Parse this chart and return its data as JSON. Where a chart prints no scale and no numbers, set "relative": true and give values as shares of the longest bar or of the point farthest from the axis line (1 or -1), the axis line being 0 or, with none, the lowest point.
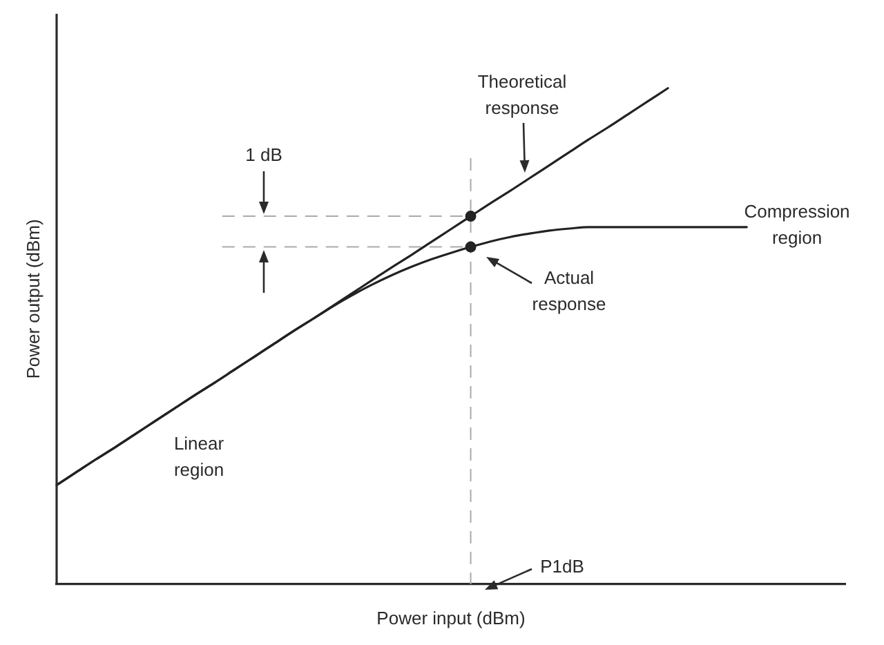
{
  "chart_data": {
    "type": "line",
    "relative": true,
    "xlabel": "Power input (dBm)",
    "ylabel": "Power output (dBm)",
    "categories": [
      null,
      null,
      null,
      null,
      null,
      null,
      null,
      null,
      null,
      null,
      null,
      null,
      null,
      null,
      null,
      null,
      null,
      null,
      null,
      null,
      null,
      null,
      null,
      null,
      null,
      null,
      null,
      null,
      null,
      null,
      null,
      null,
      null,
      null,
      null,
      null,
      null,
      null,
      null,
      null,
      null
    ],
    "series": [
      {
        "type": "line",
        "color": "#222222",
        "marker": "none",
        "values": [
          0.2,
          0.226,
          0.252,
          0.277,
          0.303,
          0.329,
          0.355,
          0.381,
          0.406,
          0.432,
          0.458,
          0.484,
          0.51,
          0.535,
          0.561,
          0.587,
          0.613,
          0.639,
          0.664,
          0.69,
          0.716,
          0.742,
          0.768,
          0.793,
          0.819,
          0.845,
          0.871,
          0.897,
          0.922,
          0.948,
          0.974,
          1.0,
          null,
          null,
          null,
          null,
          null,
          null,
          null,
          null,
          null
        ]
      },
      {
        "type": "line",
        "color": "#222222",
        "marker": "none",
        "values": [
          0.2,
          0.226,
          0.252,
          0.277,
          0.303,
          0.329,
          0.355,
          0.381,
          0.406,
          0.432,
          0.458,
          0.484,
          0.51,
          0.535,
          0.56,
          0.583,
          0.604,
          0.623,
          0.64,
          0.655,
          0.668,
          0.68,
          0.691,
          0.7,
          0.707,
          0.713,
          0.717,
          0.72,
          0.72,
          0.72,
          0.72,
          0.72,
          0.72,
          0.72,
          0.72,
          0.72,
          null,
          null,
          null,
          null,
          null
        ]
      },
      {
        "type": "line",
        "color": "#222222",
        "marker": "circle",
        "values": [
          null,
          null,
          null,
          null,
          null,
          null,
          null,
          null,
          null,
          null,
          null,
          null,
          null,
          null,
          null,
          null,
          null,
          null,
          null,
          null,
          null,
          0.742,
          null,
          null,
          null,
          null,
          null,
          null,
          null,
          null,
          null,
          null,
          null,
          null,
          null,
          null,
          null,
          null,
          null,
          null,
          null
        ]
      },
      {
        "type": "line",
        "color": "#222222",
        "marker": "circle",
        "values": [
          null,
          null,
          null,
          null,
          null,
          null,
          null,
          null,
          null,
          null,
          null,
          null,
          null,
          null,
          null,
          null,
          null,
          null,
          null,
          null,
          null,
          0.68,
          null,
          null,
          null,
          null,
          null,
          null,
          null,
          null,
          null,
          null,
          null,
          null,
          null,
          null,
          null,
          null,
          null,
          null,
          null
        ]
      }
    ],
    "ref_lines": [
      {
        "axis": "y",
        "value": 0.742,
        "color": "#aaaaaa",
        "line_style": "dashed"
      },
      {
        "axis": "y",
        "value": 0.68,
        "color": "#aaaaaa",
        "line_style": "dashed"
      }
    ],
    "annotations": [
      "Theoretical response",
      "1 dB",
      "Compression region",
      "Actual response",
      "Linear region",
      "P1dB"
    ]
  }
}
